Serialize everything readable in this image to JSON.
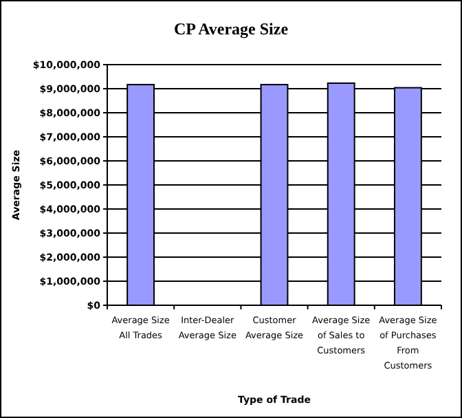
{
  "chart_data": {
    "type": "bar",
    "title": "CP Average Size",
    "xlabel": "Type of Trade",
    "ylabel": "Average Size",
    "categories": [
      "Average Size All Trades",
      "Inter-Dealer Average Size",
      "Customer Average Size",
      "Average Size of Sales to Customers",
      "Average Size of Purchases From Customers"
    ],
    "values": [
      9170000,
      null,
      9170000,
      9230000,
      9040000
    ],
    "color": "#9999ff",
    "ylim": [
      0,
      10000000
    ],
    "yticks": [
      {
        "value": 0,
        "label": "$0"
      },
      {
        "value": 1000000,
        "label": "$1,000,000"
      },
      {
        "value": 2000000,
        "label": "$2,000,000"
      },
      {
        "value": 3000000,
        "label": "$3,000,000"
      },
      {
        "value": 4000000,
        "label": "$4,000,000"
      },
      {
        "value": 5000000,
        "label": "$5,000,000"
      },
      {
        "value": 6000000,
        "label": "$6,000,000"
      },
      {
        "value": 7000000,
        "label": "$7,000,000"
      },
      {
        "value": 8000000,
        "label": "$8,000,000"
      },
      {
        "value": 9000000,
        "label": "$9,000,000"
      },
      {
        "value": 10000000,
        "label": "$10,000,000"
      }
    ],
    "grid": "y"
  }
}
